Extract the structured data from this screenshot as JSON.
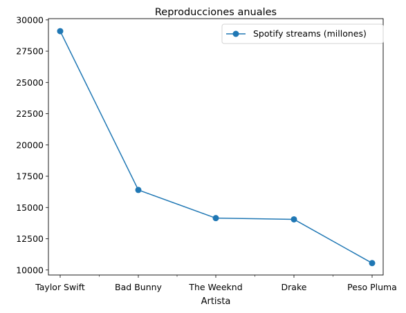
{
  "chart_data": {
    "type": "line",
    "title": "Reproducciones anuales",
    "xlabel": "Artista",
    "ylabel": "",
    "categories": [
      "Taylor Swift",
      "Bad Bunny",
      "The Weeknd",
      "Drake",
      "Peso Pluma"
    ],
    "series": [
      {
        "name": "Spotify streams (millones)",
        "values": [
          29100,
          16400,
          14150,
          14050,
          10550
        ],
        "color": "#1f77b4"
      }
    ],
    "ylim": [
      9600,
      30100
    ],
    "yticks": [
      10000,
      12500,
      15000,
      17500,
      20000,
      22500,
      25000,
      27500,
      30000
    ],
    "ytick_labels": [
      "10000",
      "12500",
      "15000",
      "17500",
      "20000",
      "22500",
      "25000",
      "27500",
      "30000"
    ],
    "minor_xticks": true,
    "grid": false,
    "legend": {
      "position": "top-right"
    }
  }
}
